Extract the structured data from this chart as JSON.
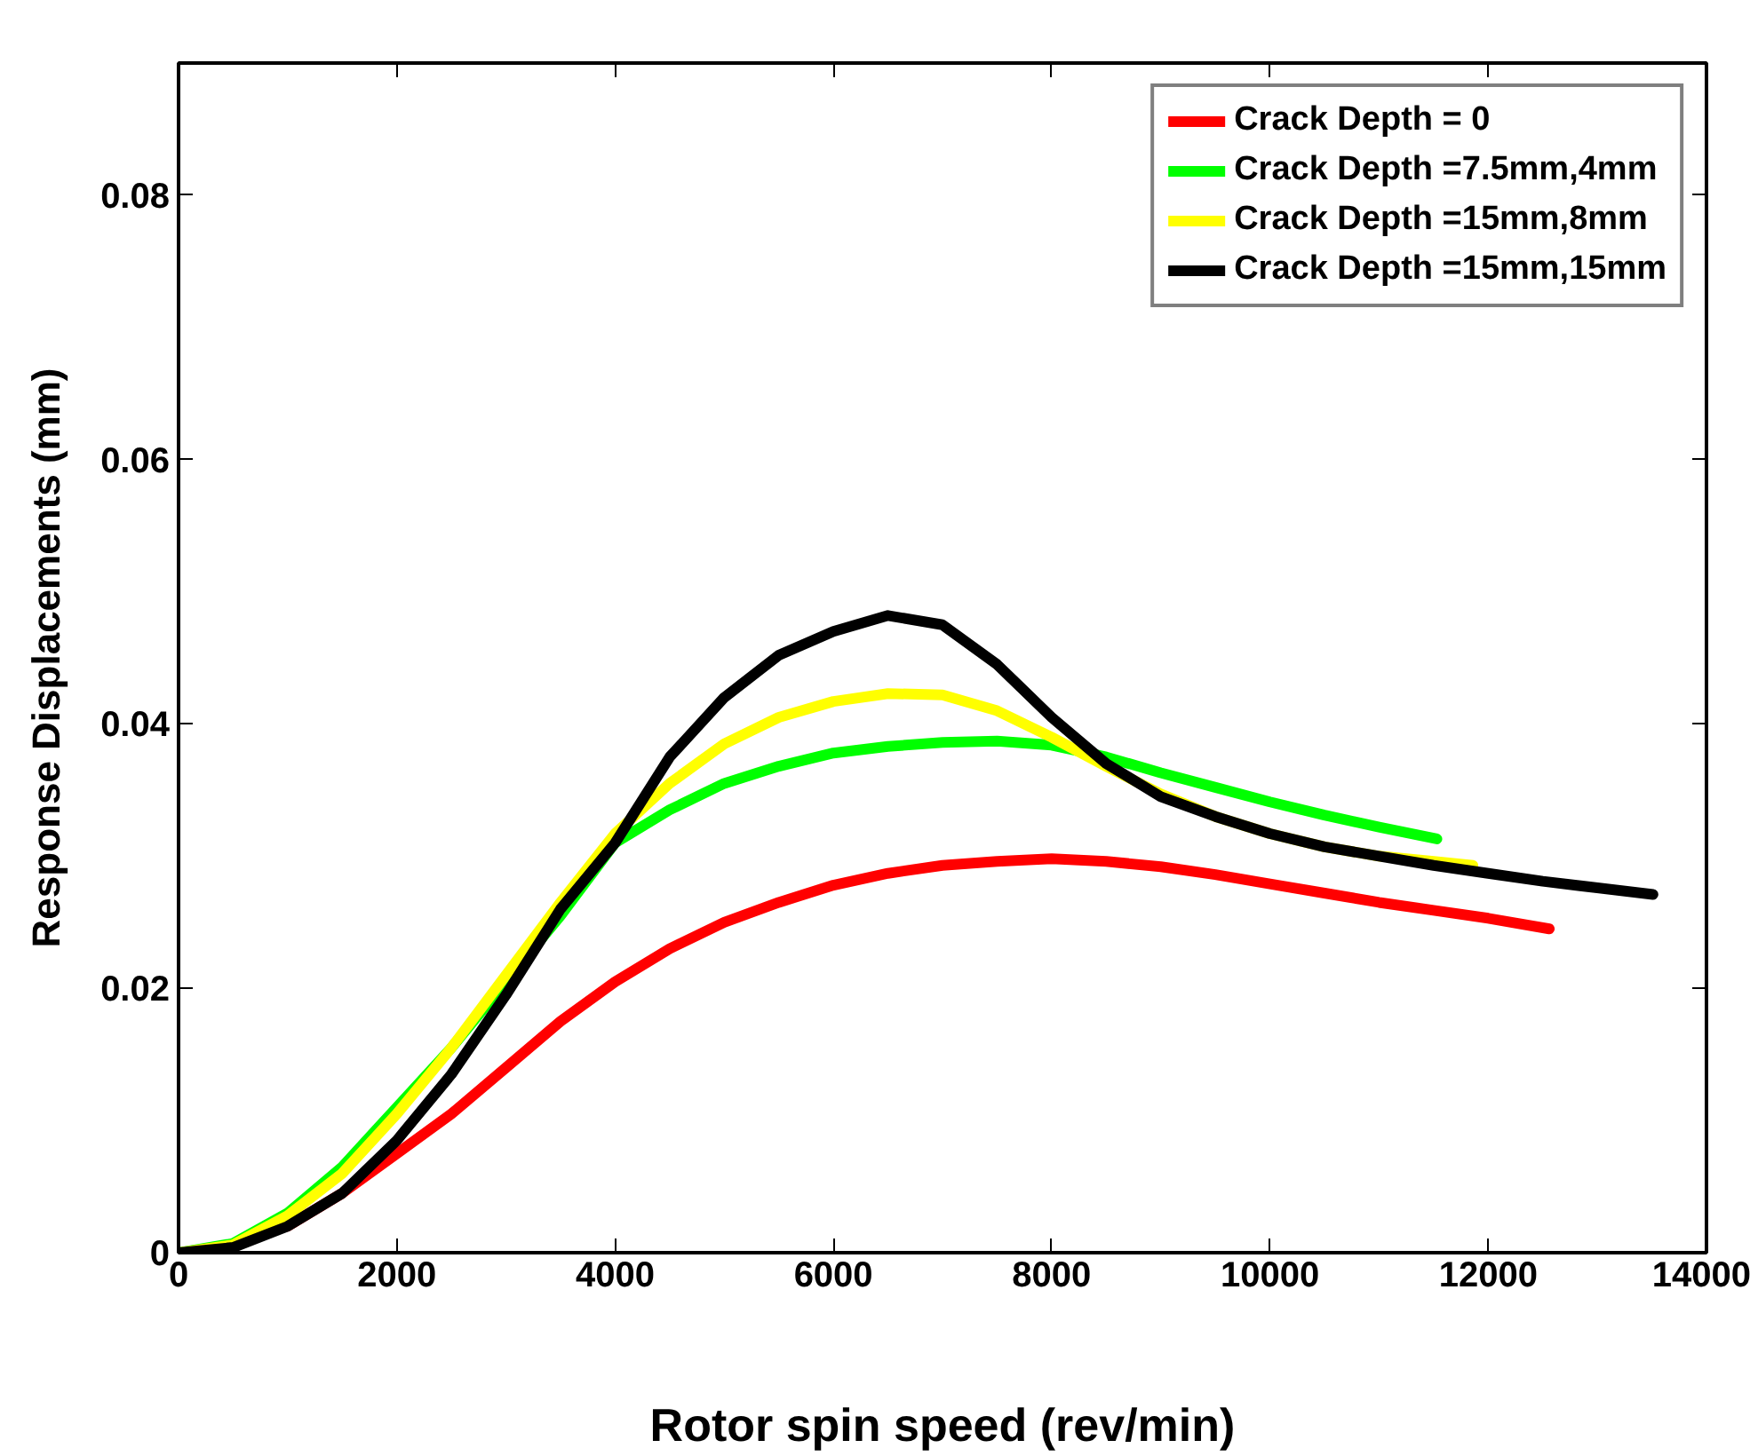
{
  "chart_data": {
    "type": "line",
    "xlabel": "Rotor spin speed (rev/min)",
    "ylabel": "Response Displacements (mm)",
    "xlim": [
      0,
      14000
    ],
    "xticks": [
      0,
      2000,
      4000,
      6000,
      8000,
      10000,
      12000,
      14000
    ],
    "ylim": [
      0,
      0.09
    ],
    "yticks": [
      0,
      0.02,
      0.04,
      0.06,
      0.08
    ],
    "grid": false,
    "legend": "top right",
    "marker": "none",
    "line_style": "solid",
    "series": [
      {
        "name": "Crack Depth = 0",
        "color": "#ff0000",
        "x": [
          1000,
          1500,
          2000,
          2500,
          3000,
          3500,
          4000,
          4500,
          5000,
          5500,
          6000,
          6500,
          7000,
          7500,
          8000,
          8500,
          9000,
          9500,
          10000,
          10500,
          11000,
          11500,
          12000,
          12560
        ],
        "values": [
          0.002,
          0.0045,
          0.0075,
          0.0105,
          0.014,
          0.0175,
          0.0205,
          0.023,
          0.025,
          0.0265,
          0.0278,
          0.0287,
          0.0293,
          0.0296,
          0.0298,
          0.0296,
          0.0292,
          0.0286,
          0.0279,
          0.0272,
          0.0265,
          0.0259,
          0.0253,
          0.0245
        ]
      },
      {
        "name": "Crack Depth =7.5mm,4mm",
        "color": "#00ff00",
        "x": [
          0,
          500,
          1000,
          1500,
          2000,
          2500,
          3000,
          3500,
          4000,
          4500,
          5000,
          5500,
          6000,
          6500,
          7000,
          7500,
          8000,
          8500,
          9000,
          9500,
          10000,
          10500,
          11000,
          11530
        ],
        "values": [
          0,
          0.0007,
          0.003,
          0.0065,
          0.011,
          0.0155,
          0.0205,
          0.0255,
          0.031,
          0.0335,
          0.0355,
          0.0368,
          0.0378,
          0.0383,
          0.0386,
          0.0387,
          0.0384,
          0.0375,
          0.0363,
          0.0352,
          0.0341,
          0.0331,
          0.0322,
          0.0313
        ]
      },
      {
        "name": "Crack Depth =15mm,8mm",
        "color": "#ffff00",
        "x": [
          0,
          500,
          1000,
          1500,
          2000,
          2500,
          3000,
          3500,
          4000,
          4500,
          5000,
          5500,
          6000,
          6500,
          7000,
          7500,
          8000,
          8500,
          9000,
          9500,
          10000,
          10500,
          11000,
          11500,
          11860
        ],
        "values": [
          0,
          0.0006,
          0.0028,
          0.006,
          0.0105,
          0.0155,
          0.021,
          0.0265,
          0.0317,
          0.0355,
          0.0385,
          0.0405,
          0.0417,
          0.0423,
          0.0422,
          0.041,
          0.039,
          0.0368,
          0.0347,
          0.033,
          0.0317,
          0.0307,
          0.03,
          0.0296,
          0.0293
        ]
      },
      {
        "name": "Crack Depth =15mm,15mm",
        "color": "#000000",
        "x": [
          0,
          500,
          1000,
          1500,
          2000,
          2500,
          3000,
          3500,
          4000,
          4500,
          5000,
          5500,
          6000,
          6500,
          7000,
          7500,
          8000,
          8500,
          9000,
          9500,
          10000,
          10500,
          11000,
          11500,
          12000,
          12500,
          13000,
          13510
        ],
        "values": [
          0,
          0.0004,
          0.002,
          0.0045,
          0.0085,
          0.0135,
          0.0195,
          0.026,
          0.031,
          0.0375,
          0.042,
          0.0452,
          0.047,
          0.0482,
          0.0475,
          0.0445,
          0.0405,
          0.037,
          0.0345,
          0.033,
          0.0317,
          0.0307,
          0.03,
          0.0293,
          0.0287,
          0.0281,
          0.0276,
          0.0271
        ]
      }
    ]
  }
}
